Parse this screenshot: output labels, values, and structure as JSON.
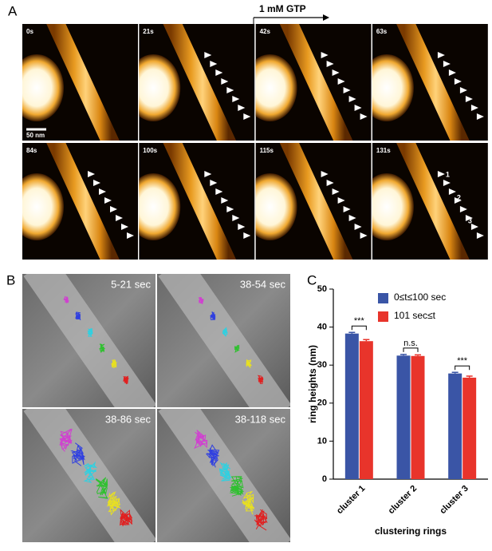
{
  "panel_a": {
    "label": "A",
    "treatment": "1 mM GTP",
    "frames": [
      "0s",
      "21s",
      "42s",
      "63s",
      "84s",
      "100s",
      "115s",
      "131s"
    ],
    "scale_bar": "50 nm",
    "ring_labels": [
      "1",
      "2",
      "3"
    ]
  },
  "panel_b": {
    "label": "B",
    "frames": [
      "5-21 sec",
      "38-54 sec",
      "38-86 sec",
      "38-118 sec"
    ]
  },
  "chart_data": {
    "type": "bar",
    "panel_label": "C",
    "categories": [
      "cluster 1",
      "cluster 2",
      "cluster 3"
    ],
    "series": [
      {
        "name": "0≤t≤100 sec",
        "color": "#3a55a6",
        "values": [
          38.3,
          32.5,
          27.8
        ],
        "errors": [
          0.3,
          0.3,
          0.3
        ]
      },
      {
        "name": "101 sec≤t",
        "color": "#e8342b",
        "values": [
          36.3,
          32.4,
          26.7
        ],
        "errors": [
          0.4,
          0.3,
          0.4
        ]
      }
    ],
    "annotations": [
      "***",
      "n.s.",
      "***"
    ],
    "ylabel": "ring heights (nm)",
    "xlabel": "clustering rings",
    "ylim": [
      0,
      50
    ],
    "yticks": [
      0,
      10,
      20,
      30,
      40,
      50
    ],
    "legend": "upper right"
  }
}
